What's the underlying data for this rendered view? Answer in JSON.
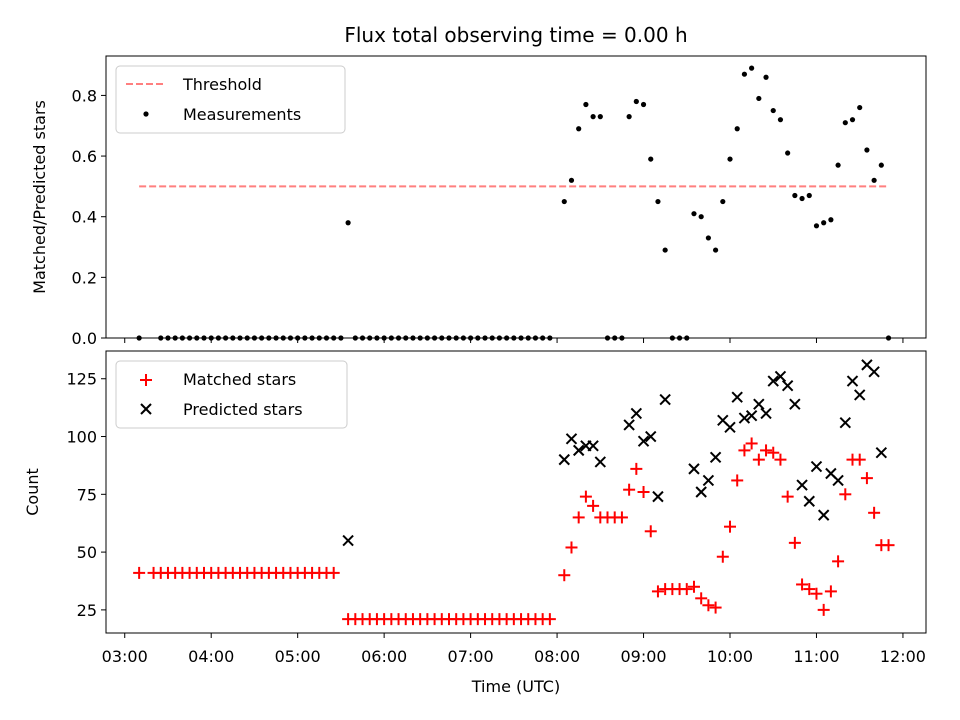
{
  "chart_data": [
    {
      "type": "scatter",
      "title": "Flux total observing time = 0.00 h",
      "xlabel": "",
      "ylabel": "Matched/Predicted stars",
      "ylim": [
        0,
        0.93
      ],
      "yticks": [
        "0.0",
        "0.2",
        "0.4",
        "0.6",
        "0.8"
      ],
      "ytick_values": [
        0,
        0.2,
        0.4,
        0.6,
        0.8
      ],
      "legend": {
        "placement": "top-left",
        "entries": [
          "Threshold",
          "Measurements"
        ]
      },
      "threshold": {
        "name": "Threshold",
        "value": 0.5,
        "x_start": "03:10",
        "x_end": "11:50",
        "color": "#ff7f7f"
      },
      "series": [
        {
          "name": "Measurements",
          "color": "#000000",
          "points": [
            [
              "03:10",
              0
            ],
            [
              "03:25",
              0
            ],
            [
              "03:30",
              0
            ],
            [
              "03:35",
              0
            ],
            [
              "03:40",
              0
            ],
            [
              "03:45",
              0
            ],
            [
              "03:50",
              0
            ],
            [
              "03:55",
              0
            ],
            [
              "04:00",
              0
            ],
            [
              "04:05",
              0
            ],
            [
              "04:10",
              0
            ],
            [
              "04:15",
              0
            ],
            [
              "04:20",
              0
            ],
            [
              "04:25",
              0
            ],
            [
              "04:30",
              0
            ],
            [
              "04:35",
              0
            ],
            [
              "04:40",
              0
            ],
            [
              "04:45",
              0
            ],
            [
              "04:50",
              0
            ],
            [
              "04:55",
              0
            ],
            [
              "05:00",
              0
            ],
            [
              "05:05",
              0
            ],
            [
              "05:10",
              0
            ],
            [
              "05:15",
              0
            ],
            [
              "05:20",
              0
            ],
            [
              "05:25",
              0
            ],
            [
              "05:30",
              0
            ],
            [
              "05:35",
              0.38
            ],
            [
              "05:40",
              0
            ],
            [
              "05:45",
              0
            ],
            [
              "05:50",
              0
            ],
            [
              "05:55",
              0
            ],
            [
              "06:00",
              0
            ],
            [
              "06:05",
              0
            ],
            [
              "06:10",
              0
            ],
            [
              "06:15",
              0
            ],
            [
              "06:20",
              0
            ],
            [
              "06:25",
              0
            ],
            [
              "06:30",
              0
            ],
            [
              "06:35",
              0
            ],
            [
              "06:40",
              0
            ],
            [
              "06:45",
              0
            ],
            [
              "06:50",
              0
            ],
            [
              "06:55",
              0
            ],
            [
              "07:00",
              0
            ],
            [
              "07:05",
              0
            ],
            [
              "07:10",
              0
            ],
            [
              "07:15",
              0
            ],
            [
              "07:20",
              0
            ],
            [
              "07:25",
              0
            ],
            [
              "07:30",
              0
            ],
            [
              "07:35",
              0
            ],
            [
              "07:40",
              0
            ],
            [
              "07:45",
              0
            ],
            [
              "07:50",
              0
            ],
            [
              "07:55",
              0
            ],
            [
              "08:05",
              0.45
            ],
            [
              "08:10",
              0.52
            ],
            [
              "08:15",
              0.69
            ],
            [
              "08:20",
              0.77
            ],
            [
              "08:25",
              0.73
            ],
            [
              "08:30",
              0.73
            ],
            [
              "08:35",
              0
            ],
            [
              "08:40",
              0
            ],
            [
              "08:45",
              0
            ],
            [
              "08:50",
              0.73
            ],
            [
              "08:55",
              0.78
            ],
            [
              "09:00",
              0.77
            ],
            [
              "09:05",
              0.59
            ],
            [
              "09:10",
              0.45
            ],
            [
              "09:15",
              0.29
            ],
            [
              "09:20",
              0
            ],
            [
              "09:25",
              0
            ],
            [
              "09:30",
              0
            ],
            [
              "09:35",
              0.41
            ],
            [
              "09:40",
              0.4
            ],
            [
              "09:45",
              0.33
            ],
            [
              "09:50",
              0.29
            ],
            [
              "09:55",
              0.45
            ],
            [
              "10:00",
              0.59
            ],
            [
              "10:05",
              0.69
            ],
            [
              "10:10",
              0.87
            ],
            [
              "10:15",
              0.89
            ],
            [
              "10:20",
              0.79
            ],
            [
              "10:25",
              0.86
            ],
            [
              "10:30",
              0.75
            ],
            [
              "10:35",
              0.72
            ],
            [
              "10:40",
              0.61
            ],
            [
              "10:45",
              0.47
            ],
            [
              "10:50",
              0.46
            ],
            [
              "10:55",
              0.47
            ],
            [
              "11:00",
              0.37
            ],
            [
              "11:05",
              0.38
            ],
            [
              "11:10",
              0.39
            ],
            [
              "11:15",
              0.57
            ],
            [
              "11:20",
              0.71
            ],
            [
              "11:25",
              0.72
            ],
            [
              "11:30",
              0.76
            ],
            [
              "11:35",
              0.62
            ],
            [
              "11:40",
              0.52
            ],
            [
              "11:45",
              0.57
            ],
            [
              "11:50",
              0
            ]
          ]
        }
      ]
    },
    {
      "type": "scatter",
      "title": "",
      "xlabel": "Time (UTC)",
      "ylabel": "Count",
      "xlim": [
        "02:47",
        "12:16"
      ],
      "ylim": [
        15,
        137
      ],
      "xticks": [
        "03:00",
        "04:00",
        "05:00",
        "06:00",
        "07:00",
        "08:00",
        "09:00",
        "10:00",
        "11:00",
        "12:00"
      ],
      "yticks": [
        "25",
        "50",
        "75",
        "100",
        "125"
      ],
      "ytick_values": [
        25,
        50,
        75,
        100,
        125
      ],
      "legend": {
        "placement": "top-left",
        "entries": [
          "Matched stars",
          "Predicted stars"
        ]
      },
      "series": [
        {
          "name": "Matched stars",
          "marker": "plus",
          "color": "#ff0000",
          "points": [
            [
              "03:10",
              41
            ],
            [
              "03:20",
              41
            ],
            [
              "03:25",
              41
            ],
            [
              "03:30",
              41
            ],
            [
              "03:35",
              41
            ],
            [
              "03:40",
              41
            ],
            [
              "03:45",
              41
            ],
            [
              "03:50",
              41
            ],
            [
              "03:55",
              41
            ],
            [
              "04:00",
              41
            ],
            [
              "04:05",
              41
            ],
            [
              "04:10",
              41
            ],
            [
              "04:15",
              41
            ],
            [
              "04:20",
              41
            ],
            [
              "04:25",
              41
            ],
            [
              "04:30",
              41
            ],
            [
              "04:35",
              41
            ],
            [
              "04:40",
              41
            ],
            [
              "04:45",
              41
            ],
            [
              "04:50",
              41
            ],
            [
              "04:55",
              41
            ],
            [
              "05:00",
              41
            ],
            [
              "05:05",
              41
            ],
            [
              "05:10",
              41
            ],
            [
              "05:15",
              41
            ],
            [
              "05:20",
              41
            ],
            [
              "05:25",
              41
            ],
            [
              "05:35",
              21
            ],
            [
              "05:40",
              21
            ],
            [
              "05:45",
              21
            ],
            [
              "05:50",
              21
            ],
            [
              "05:55",
              21
            ],
            [
              "06:00",
              21
            ],
            [
              "06:05",
              21
            ],
            [
              "06:10",
              21
            ],
            [
              "06:15",
              21
            ],
            [
              "06:20",
              21
            ],
            [
              "06:25",
              21
            ],
            [
              "06:30",
              21
            ],
            [
              "06:35",
              21
            ],
            [
              "06:40",
              21
            ],
            [
              "06:45",
              21
            ],
            [
              "06:50",
              21
            ],
            [
              "06:55",
              21
            ],
            [
              "07:00",
              21
            ],
            [
              "07:05",
              21
            ],
            [
              "07:10",
              21
            ],
            [
              "07:15",
              21
            ],
            [
              "07:20",
              21
            ],
            [
              "07:25",
              21
            ],
            [
              "07:30",
              21
            ],
            [
              "07:35",
              21
            ],
            [
              "07:40",
              21
            ],
            [
              "07:45",
              21
            ],
            [
              "07:50",
              21
            ],
            [
              "07:55",
              21
            ],
            [
              "08:05",
              40
            ],
            [
              "08:10",
              52
            ],
            [
              "08:15",
              65
            ],
            [
              "08:20",
              74
            ],
            [
              "08:25",
              70
            ],
            [
              "08:30",
              65
            ],
            [
              "08:35",
              65
            ],
            [
              "08:40",
              65
            ],
            [
              "08:45",
              65
            ],
            [
              "08:50",
              77
            ],
            [
              "08:55",
              86
            ],
            [
              "09:00",
              76
            ],
            [
              "09:05",
              59
            ],
            [
              "09:10",
              33
            ],
            [
              "09:15",
              34
            ],
            [
              "09:20",
              34
            ],
            [
              "09:25",
              34
            ],
            [
              "09:30",
              34
            ],
            [
              "09:35",
              35
            ],
            [
              "09:40",
              30
            ],
            [
              "09:45",
              27
            ],
            [
              "09:50",
              26
            ],
            [
              "09:55",
              48
            ],
            [
              "10:00",
              61
            ],
            [
              "10:05",
              81
            ],
            [
              "10:10",
              94
            ],
            [
              "10:15",
              97
            ],
            [
              "10:20",
              90
            ],
            [
              "10:25",
              94
            ],
            [
              "10:30",
              93
            ],
            [
              "10:35",
              90
            ],
            [
              "10:40",
              74
            ],
            [
              "10:45",
              54
            ],
            [
              "10:50",
              36
            ],
            [
              "10:55",
              34
            ],
            [
              "11:00",
              32
            ],
            [
              "11:05",
              25
            ],
            [
              "11:10",
              33
            ],
            [
              "11:15",
              46
            ],
            [
              "11:20",
              75
            ],
            [
              "11:25",
              90
            ],
            [
              "11:30",
              90
            ],
            [
              "11:35",
              82
            ],
            [
              "11:40",
              67
            ],
            [
              "11:45",
              53
            ],
            [
              "11:50",
              53
            ]
          ]
        },
        {
          "name": "Predicted stars",
          "marker": "x",
          "color": "#000000",
          "points": [
            [
              "05:35",
              55
            ],
            [
              "08:05",
              90
            ],
            [
              "08:10",
              99
            ],
            [
              "08:15",
              94
            ],
            [
              "08:20",
              96
            ],
            [
              "08:25",
              96
            ],
            [
              "08:30",
              89
            ],
            [
              "08:50",
              105
            ],
            [
              "08:55",
              110
            ],
            [
              "09:00",
              98
            ],
            [
              "09:05",
              100
            ],
            [
              "09:10",
              74
            ],
            [
              "09:15",
              116
            ],
            [
              "09:35",
              86
            ],
            [
              "09:40",
              76
            ],
            [
              "09:45",
              81
            ],
            [
              "09:50",
              91
            ],
            [
              "09:55",
              107
            ],
            [
              "10:00",
              104
            ],
            [
              "10:05",
              117
            ],
            [
              "10:10",
              108
            ],
            [
              "10:15",
              109
            ],
            [
              "10:20",
              114
            ],
            [
              "10:25",
              110
            ],
            [
              "10:30",
              124
            ],
            [
              "10:35",
              126
            ],
            [
              "10:40",
              122
            ],
            [
              "10:45",
              114
            ],
            [
              "10:50",
              79
            ],
            [
              "10:55",
              72
            ],
            [
              "11:00",
              87
            ],
            [
              "11:05",
              66
            ],
            [
              "11:10",
              84
            ],
            [
              "11:15",
              81
            ],
            [
              "11:20",
              106
            ],
            [
              "11:25",
              124
            ],
            [
              "11:30",
              118
            ],
            [
              "11:35",
              131
            ],
            [
              "11:40",
              128
            ],
            [
              "11:45",
              93
            ]
          ]
        }
      ]
    }
  ]
}
